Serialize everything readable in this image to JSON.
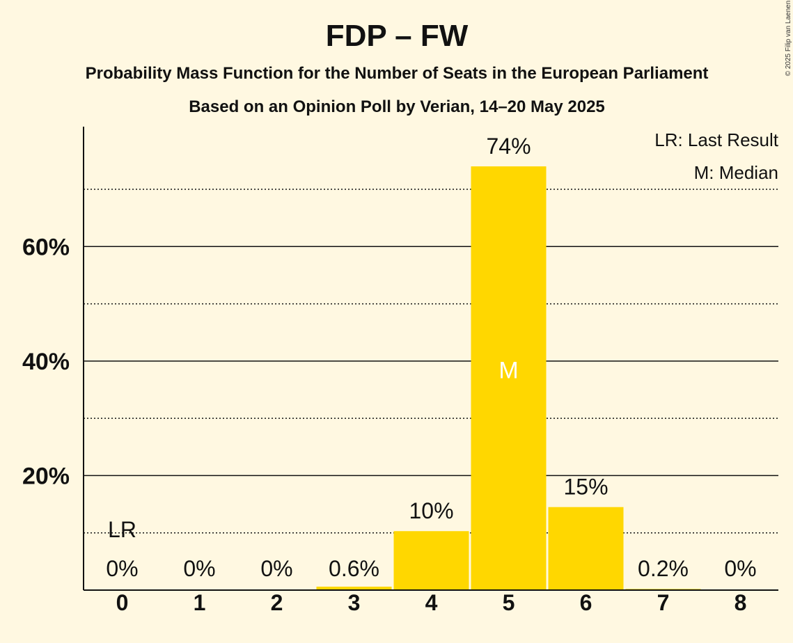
{
  "chart_data": {
    "type": "bar",
    "title": "FDP – FW",
    "subtitle": "Probability Mass Function for the Number of Seats in the European Parliament",
    "subtitle2": "Based on an Opinion Poll by Verian, 14–20 May 2025",
    "copyright": "© 2025 Filip van Laenen",
    "categories": [
      "0",
      "1",
      "2",
      "3",
      "4",
      "5",
      "6",
      "7",
      "8"
    ],
    "values": [
      0,
      0,
      0,
      0.6,
      10.3,
      74,
      14.5,
      0.2,
      0
    ],
    "data_labels": [
      "0%",
      "0%",
      "0%",
      "0.6%",
      "10%",
      "74%",
      "15%",
      "0.2%",
      "0%"
    ],
    "ylim": [
      0,
      81
    ],
    "major_ticks": [
      20,
      40,
      60
    ],
    "major_tick_labels": [
      "20%",
      "40%",
      "60%"
    ],
    "minor_ticks": [
      10,
      30,
      50,
      70
    ],
    "bar_color": "#FFD700",
    "median_index": 5,
    "median_label": "M",
    "last_result_index": 0,
    "last_result_label": "LR",
    "legend": {
      "position": "top-right",
      "entries": [
        "LR: Last Result",
        "M: Median"
      ]
    }
  }
}
